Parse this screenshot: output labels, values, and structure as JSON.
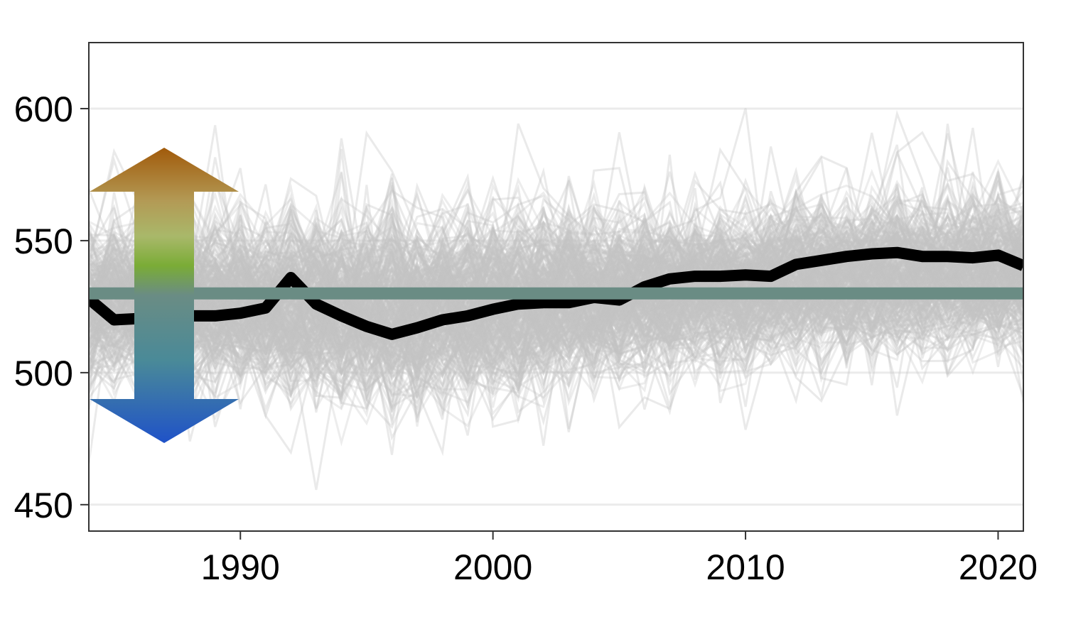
{
  "chart_data": {
    "type": "line",
    "title": "",
    "xlabel": "",
    "ylabel": "",
    "xlim": [
      1984,
      2021
    ],
    "ylim": [
      440,
      625
    ],
    "x_ticks": [
      1990,
      2000,
      2010,
      2020
    ],
    "y_ticks": [
      450,
      500,
      550,
      600
    ],
    "grid": "horizontal",
    "legend": "none",
    "series": [
      {
        "role": "highlight",
        "color": "#000000",
        "x": [
          1984,
          1985,
          1986,
          1987,
          1988,
          1989,
          1990,
          1991,
          1992,
          1993,
          1994,
          1995,
          1996,
          1997,
          1998,
          1999,
          2000,
          2001,
          2002,
          2003,
          2004,
          2005,
          2006,
          2007,
          2008,
          2009,
          2010,
          2011,
          2012,
          2013,
          2014,
          2015,
          2016,
          2017,
          2018,
          2019,
          2020,
          2021
        ],
        "values": [
          528,
          520,
          520.5,
          521,
          521.5,
          521.5,
          522.5,
          524.5,
          536,
          526,
          521.5,
          517.5,
          514.5,
          517,
          520,
          521.5,
          524,
          526,
          526.5,
          526.5,
          528.5,
          527.5,
          532.5,
          535.5,
          536.5,
          536.5,
          537,
          536.5,
          541,
          542.5,
          544,
          545,
          545.5,
          544,
          544,
          543.5,
          544.5,
          540.5
        ]
      }
    ],
    "reference_line": {
      "value": 530,
      "color": "#6a8c84"
    },
    "ensemble": {
      "color": "#c4c4c4",
      "count": 320,
      "center": [
        527,
        527,
        527.5,
        527,
        527,
        526.5,
        526,
        526,
        526.5,
        526,
        525.5,
        525,
        524.5,
        525,
        525.5,
        526,
        526.5,
        527,
        527.5,
        528,
        529,
        529.5,
        530.5,
        531.5,
        532.5,
        533,
        533.5,
        534,
        535,
        535.5,
        536,
        536.5,
        537,
        537.5,
        538,
        538,
        538.5,
        538.5
      ],
      "spread": [
        14,
        14,
        14,
        14,
        15,
        15,
        15,
        16,
        16,
        16,
        17,
        17,
        17,
        17,
        17,
        17,
        17,
        17,
        16,
        16,
        16,
        15,
        15,
        14,
        14,
        14,
        14,
        14,
        14,
        14,
        14,
        14,
        14,
        14,
        14,
        14,
        14,
        14
      ]
    },
    "arrow": {
      "direction": "both",
      "color_top": "#a15a0a",
      "color_mid": "#7aac36",
      "color_bottom": "#1f52c8"
    }
  }
}
